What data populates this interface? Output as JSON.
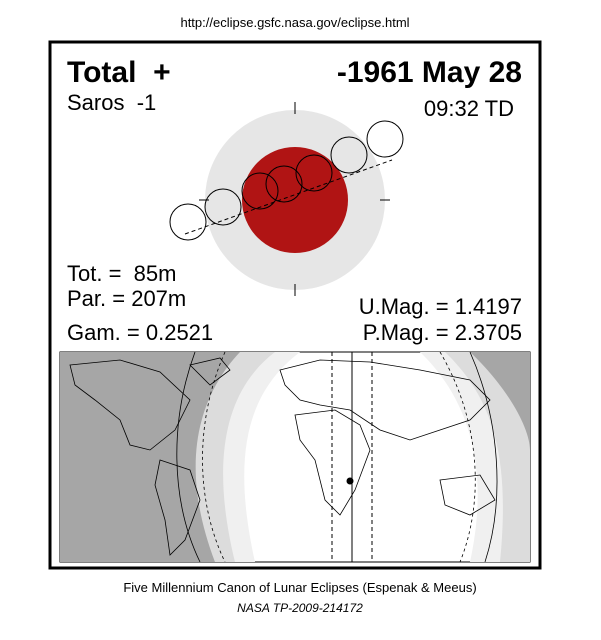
{
  "header": {
    "url": "http://eclipse.gsfc.nasa.gov/eclipse.html"
  },
  "eclipse": {
    "type": "Total  +",
    "date": "-1961 May 28",
    "saros": "Saros  -1",
    "time": "09:32 TD",
    "tot": "Tot. =  85m",
    "par": "Par. = 207m",
    "gam": "Gam. = 0.2521",
    "umag": "U.Mag. = 1.4197",
    "pmag": "P.Mag. = 2.3705"
  },
  "footer": {
    "line1": "Five Millennium Canon of Lunar Eclipses (Espenak & Meeus)",
    "line2": "NASA TP-2009-214172"
  }
}
